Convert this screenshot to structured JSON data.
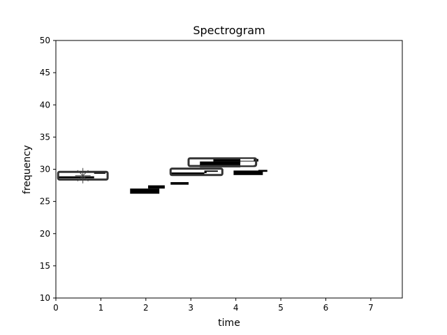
{
  "chart_data": {
    "type": "heatmap",
    "title": "Spectrogram",
    "xlabel": "time",
    "ylabel": "frequency",
    "xlim": [
      0,
      7.7
    ],
    "ylim": [
      10,
      50
    ],
    "xticks": [
      0,
      1,
      2,
      3,
      4,
      5,
      6,
      7
    ],
    "yticks": [
      10,
      15,
      20,
      25,
      30,
      35,
      40,
      45,
      50
    ],
    "grid": false,
    "legend": "none",
    "colors": {
      "background": "#ffffff",
      "energy": "#000000",
      "box_outline": "#333333",
      "box_fill": "#ffffff",
      "marker": "#444444"
    },
    "energy_segments": [
      {
        "t0": 0.05,
        "t1": 0.85,
        "f0": 28.6,
        "f1": 28.9
      },
      {
        "t0": 0.85,
        "t1": 1.1,
        "f0": 29.3,
        "f1": 29.6
      },
      {
        "t0": 1.65,
        "t1": 2.3,
        "f0": 26.2,
        "f1": 27.0
      },
      {
        "t0": 2.05,
        "t1": 2.42,
        "f0": 27.0,
        "f1": 27.5
      },
      {
        "t0": 2.55,
        "t1": 2.95,
        "f0": 27.6,
        "f1": 28.0
      },
      {
        "t0": 2.55,
        "t1": 3.3,
        "f0": 29.0,
        "f1": 29.5
      },
      {
        "t0": 3.3,
        "t1": 3.6,
        "f0": 29.4,
        "f1": 29.8
      },
      {
        "t0": 3.2,
        "t1": 4.1,
        "f0": 30.3,
        "f1": 31.2
      },
      {
        "t0": 3.5,
        "t1": 4.5,
        "f0": 31.2,
        "f1": 31.6
      },
      {
        "t0": 3.95,
        "t1": 4.6,
        "f0": 29.1,
        "f1": 29.8
      },
      {
        "t0": 4.5,
        "t1": 4.7,
        "f0": 29.6,
        "f1": 29.9
      }
    ],
    "detection_boxes": [
      {
        "t0": 0.05,
        "t1": 1.15,
        "f0": 28.4,
        "f1": 29.6
      },
      {
        "t0": 2.55,
        "t1": 3.7,
        "f0": 29.1,
        "f1": 30.1
      },
      {
        "t0": 2.95,
        "t1": 4.45,
        "f0": 30.5,
        "f1": 31.7
      }
    ],
    "inner_highlights": [
      {
        "t0": 0.1,
        "t1": 0.45,
        "f0": 29.1,
        "f1": 29.3
      },
      {
        "t0": 0.9,
        "t1": 1.1,
        "f0": 28.7,
        "f1": 29.0
      },
      {
        "t0": 2.6,
        "t1": 3.1,
        "f0": 29.6,
        "f1": 29.9
      },
      {
        "t0": 3.35,
        "t1": 3.65,
        "f0": 29.3,
        "f1": 29.6
      },
      {
        "t0": 3.0,
        "t1": 3.2,
        "f0": 30.8,
        "f1": 31.3
      },
      {
        "t0": 4.1,
        "t1": 4.4,
        "f0": 31.3,
        "f1": 31.6
      },
      {
        "t0": 4.1,
        "t1": 4.4,
        "f0": 30.6,
        "f1": 30.9
      }
    ],
    "markers": [
      {
        "t": 0.6,
        "f": 29.0,
        "shape": "asterisk"
      }
    ]
  }
}
